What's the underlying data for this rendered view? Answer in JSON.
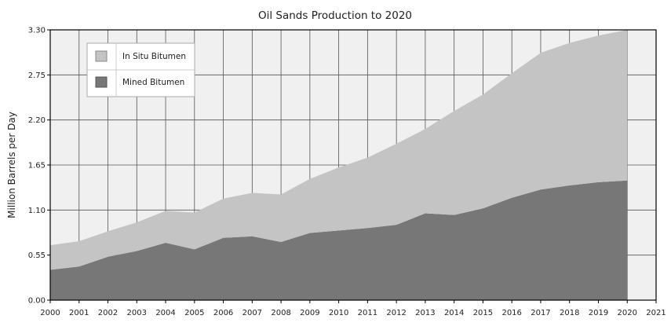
{
  "chart_data": {
    "type": "area",
    "stacked": true,
    "title": "Oil Sands Production to 2020",
    "xlabel": "",
    "ylabel": "Million Barrels per Day",
    "x": [
      2000,
      2001,
      2002,
      2003,
      2004,
      2005,
      2006,
      2007,
      2008,
      2009,
      2010,
      2011,
      2012,
      2013,
      2014,
      2015,
      2016,
      2017,
      2018,
      2019,
      2020
    ],
    "x_ticks": [
      2000,
      2001,
      2002,
      2003,
      2004,
      2005,
      2006,
      2007,
      2008,
      2009,
      2010,
      2011,
      2012,
      2013,
      2014,
      2015,
      2016,
      2017,
      2018,
      2019,
      2020,
      2021
    ],
    "xlim": [
      2000,
      2021
    ],
    "ylim": [
      0,
      3.3
    ],
    "y_ticks": [
      "0.00",
      "0.55",
      "1.10",
      "1.65",
      "2.20",
      "2.75",
      "3.30"
    ],
    "grid": true,
    "legend_position": "top-left",
    "series": [
      {
        "name": "Mined Bitumen",
        "color": "#777777",
        "values": [
          0.37,
          0.41,
          0.53,
          0.6,
          0.7,
          0.62,
          0.76,
          0.78,
          0.71,
          0.82,
          0.85,
          0.88,
          0.92,
          1.06,
          1.04,
          1.12,
          1.25,
          1.35,
          1.4,
          1.44,
          1.46
        ]
      },
      {
        "name": "In Situ Bitumen",
        "color": "#c4c4c4",
        "values": [
          0.3,
          0.31,
          0.31,
          0.35,
          0.39,
          0.45,
          0.48,
          0.53,
          0.58,
          0.66,
          0.77,
          0.86,
          0.99,
          1.03,
          1.27,
          1.39,
          1.52,
          1.67,
          1.74,
          1.79,
          1.84
        ]
      }
    ]
  }
}
